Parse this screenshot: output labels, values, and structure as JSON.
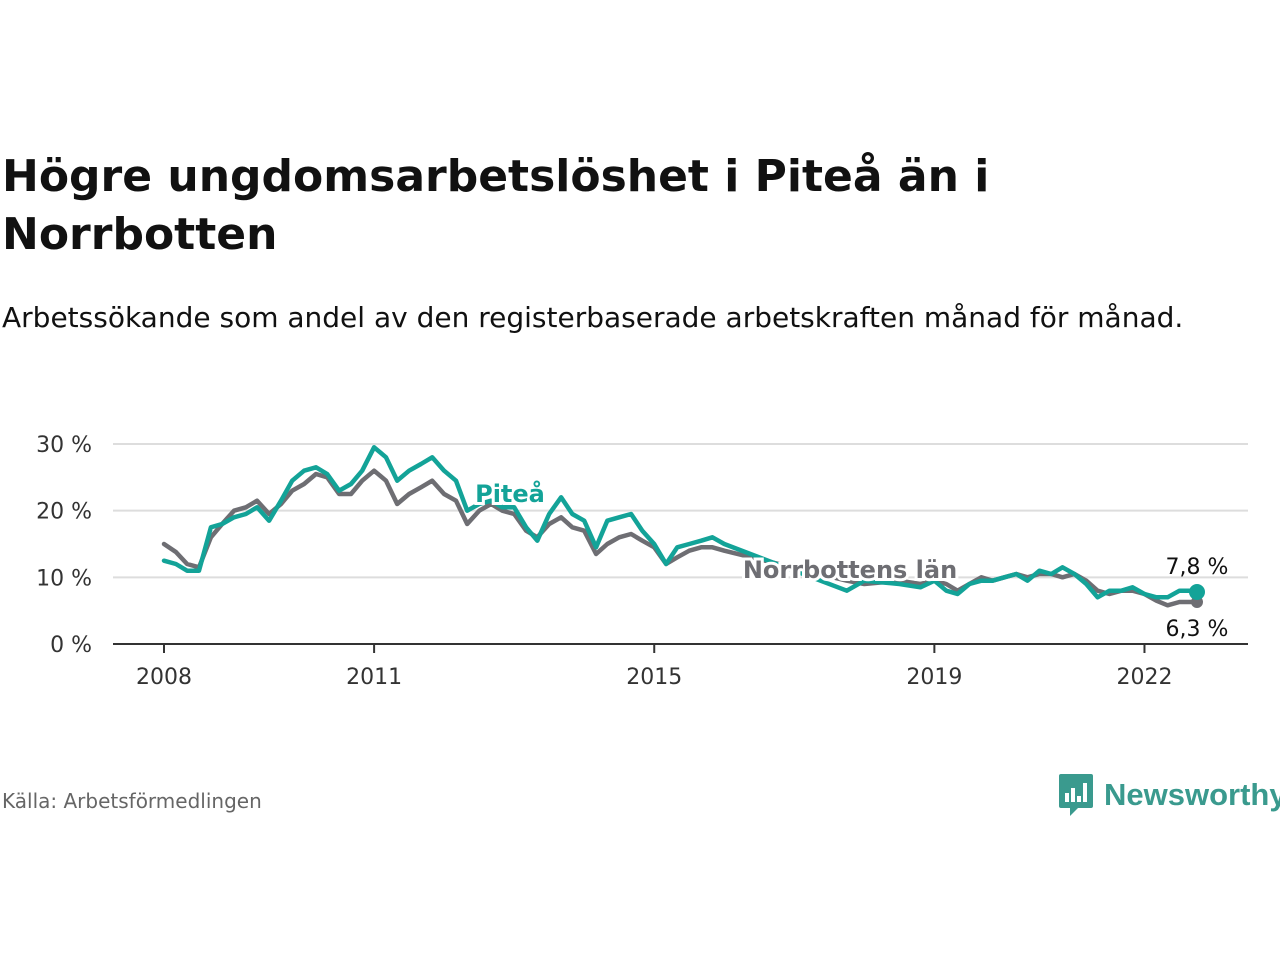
{
  "title": "Högre ungdomsarbetslöshet i Piteå än i Norrbotten",
  "subtitle": "Arbetssökande som andel av den registerbaserade arbetskraften månad för månad.",
  "source": "Källa: Arbetsförmedlingen",
  "brand": "Newsworthy",
  "colors": {
    "pitea": "#13a398",
    "norrbotten": "#6e6e73",
    "grid": "#dddddd",
    "axis": "#333333",
    "brand": "#3a9a8e"
  },
  "chart_data": {
    "type": "line",
    "title": "Högre ungdomsarbetslöshet i Piteå än i Norrbotten",
    "xlabel": "",
    "ylabel": "",
    "xlim": [
      2007.9,
      2022.85
    ],
    "ylim": [
      0,
      30
    ],
    "y_ticks": [
      0,
      10,
      20,
      30
    ],
    "y_tick_labels": [
      "0 %",
      "10 %",
      "20 %",
      "30 %"
    ],
    "x_ticks": [
      2008,
      2011,
      2015,
      2019,
      2022
    ],
    "x_tick_labels": [
      "2008",
      "2011",
      "2015",
      "2019",
      "2022"
    ],
    "grid": true,
    "series": [
      {
        "name": "Norrbottens län",
        "label": "Norrbottens län",
        "key": "norrbotten",
        "end_label": "6,3 %",
        "points": [
          [
            2008.0,
            15.0
          ],
          [
            2008.17,
            13.8
          ],
          [
            2008.33,
            12.0
          ],
          [
            2008.5,
            11.5
          ],
          [
            2008.67,
            16.0
          ],
          [
            2008.83,
            18.0
          ],
          [
            2009.0,
            20.0
          ],
          [
            2009.17,
            20.5
          ],
          [
            2009.33,
            21.5
          ],
          [
            2009.5,
            19.5
          ],
          [
            2009.67,
            21.0
          ],
          [
            2009.83,
            23.0
          ],
          [
            2010.0,
            24.0
          ],
          [
            2010.17,
            25.5
          ],
          [
            2010.33,
            25.0
          ],
          [
            2010.5,
            22.5
          ],
          [
            2010.67,
            22.5
          ],
          [
            2010.83,
            24.5
          ],
          [
            2011.0,
            26.0
          ],
          [
            2011.17,
            24.5
          ],
          [
            2011.33,
            21.0
          ],
          [
            2011.5,
            22.5
          ],
          [
            2011.67,
            23.5
          ],
          [
            2011.83,
            24.5
          ],
          [
            2012.0,
            22.5
          ],
          [
            2012.17,
            21.5
          ],
          [
            2012.33,
            18.0
          ],
          [
            2012.5,
            20.0
          ],
          [
            2012.67,
            21.0
          ],
          [
            2012.83,
            20.0
          ],
          [
            2013.0,
            19.5
          ],
          [
            2013.17,
            17.0
          ],
          [
            2013.33,
            16.0
          ],
          [
            2013.5,
            18.0
          ],
          [
            2013.67,
            19.0
          ],
          [
            2013.83,
            17.5
          ],
          [
            2014.0,
            17.0
          ],
          [
            2014.17,
            13.5
          ],
          [
            2014.33,
            15.0
          ],
          [
            2014.5,
            16.0
          ],
          [
            2014.67,
            16.5
          ],
          [
            2014.83,
            15.5
          ],
          [
            2015.0,
            14.5
          ],
          [
            2015.17,
            12.0
          ],
          [
            2015.33,
            13.0
          ],
          [
            2015.5,
            14.0
          ],
          [
            2015.67,
            14.5
          ],
          [
            2015.83,
            14.5
          ],
          [
            2016.0,
            14.0
          ],
          [
            2017.75,
            9.5
          ],
          [
            2018.0,
            9.0
          ],
          [
            2018.5,
            9.5
          ],
          [
            2018.8,
            9.0
          ],
          [
            2019.0,
            9.5
          ],
          [
            2019.17,
            9.0
          ],
          [
            2019.33,
            8.0
          ],
          [
            2019.5,
            9.0
          ],
          [
            2019.67,
            10.0
          ],
          [
            2019.83,
            9.5
          ],
          [
            2020.0,
            10.0
          ],
          [
            2020.17,
            10.5
          ],
          [
            2020.33,
            10.0
          ],
          [
            2020.5,
            10.5
          ],
          [
            2020.67,
            10.5
          ],
          [
            2020.83,
            10.0
          ],
          [
            2021.0,
            10.5
          ],
          [
            2021.17,
            9.5
          ],
          [
            2021.33,
            8.0
          ],
          [
            2021.5,
            7.5
          ],
          [
            2021.67,
            8.0
          ],
          [
            2021.83,
            8.0
          ],
          [
            2022.0,
            7.5
          ],
          [
            2022.17,
            6.5
          ],
          [
            2022.33,
            5.8
          ],
          [
            2022.5,
            6.3
          ],
          [
            2022.67,
            6.3
          ],
          [
            2022.75,
            6.3
          ]
        ]
      },
      {
        "name": "Piteå",
        "label": "Piteå",
        "key": "pitea",
        "end_label": "7,8 %",
        "points": [
          [
            2008.0,
            12.5
          ],
          [
            2008.17,
            12.0
          ],
          [
            2008.33,
            11.0
          ],
          [
            2008.5,
            11.0
          ],
          [
            2008.67,
            17.5
          ],
          [
            2008.83,
            18.0
          ],
          [
            2009.0,
            19.0
          ],
          [
            2009.17,
            19.5
          ],
          [
            2009.33,
            20.5
          ],
          [
            2009.5,
            18.5
          ],
          [
            2009.67,
            21.5
          ],
          [
            2009.83,
            24.5
          ],
          [
            2010.0,
            26.0
          ],
          [
            2010.17,
            26.5
          ],
          [
            2010.33,
            25.5
          ],
          [
            2010.5,
            23.0
          ],
          [
            2010.67,
            24.0
          ],
          [
            2010.83,
            26.0
          ],
          [
            2011.0,
            29.5
          ],
          [
            2011.17,
            28.0
          ],
          [
            2011.33,
            24.5
          ],
          [
            2011.5,
            26.0
          ],
          [
            2011.67,
            27.0
          ],
          [
            2011.83,
            28.0
          ],
          [
            2012.0,
            26.0
          ],
          [
            2012.17,
            24.5
          ],
          [
            2012.33,
            20.0
          ],
          [
            2012.5,
            21.0
          ],
          [
            2012.67,
            21.5
          ],
          [
            2012.83,
            20.5
          ],
          [
            2013.0,
            20.5
          ],
          [
            2013.17,
            17.5
          ],
          [
            2013.33,
            15.5
          ],
          [
            2013.5,
            19.5
          ],
          [
            2013.67,
            22.0
          ],
          [
            2013.83,
            19.5
          ],
          [
            2014.0,
            18.5
          ],
          [
            2014.17,
            14.5
          ],
          [
            2014.33,
            18.5
          ],
          [
            2014.5,
            19.0
          ],
          [
            2014.67,
            19.5
          ],
          [
            2014.83,
            17.0
          ],
          [
            2015.0,
            15.0
          ],
          [
            2015.17,
            12.0
          ],
          [
            2015.33,
            14.5
          ],
          [
            2015.5,
            15.0
          ],
          [
            2015.67,
            15.5
          ],
          [
            2015.83,
            16.0
          ],
          [
            2016.0,
            15.0
          ],
          [
            2017.75,
            8.0
          ],
          [
            2018.0,
            9.5
          ],
          [
            2018.5,
            9.0
          ],
          [
            2018.8,
            8.5
          ],
          [
            2019.0,
            9.5
          ],
          [
            2019.17,
            8.0
          ],
          [
            2019.33,
            7.5
          ],
          [
            2019.5,
            9.0
          ],
          [
            2019.67,
            9.5
          ],
          [
            2019.83,
            9.5
          ],
          [
            2020.0,
            10.0
          ],
          [
            2020.17,
            10.5
          ],
          [
            2020.33,
            9.5
          ],
          [
            2020.5,
            11.0
          ],
          [
            2020.67,
            10.5
          ],
          [
            2020.83,
            11.5
          ],
          [
            2021.0,
            10.5
          ],
          [
            2021.17,
            9.0
          ],
          [
            2021.33,
            7.0
          ],
          [
            2021.5,
            8.0
          ],
          [
            2021.67,
            8.0
          ],
          [
            2021.83,
            8.5
          ],
          [
            2022.0,
            7.5
          ],
          [
            2022.17,
            7.0
          ],
          [
            2022.33,
            7.0
          ],
          [
            2022.5,
            8.0
          ],
          [
            2022.67,
            8.0
          ],
          [
            2022.75,
            7.8
          ]
        ]
      }
    ]
  }
}
